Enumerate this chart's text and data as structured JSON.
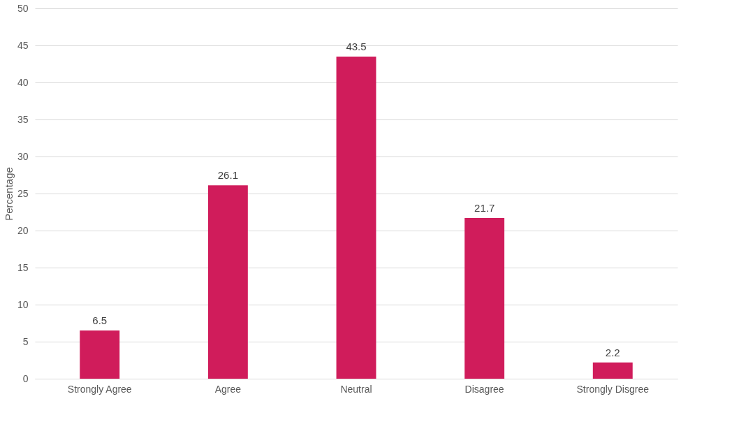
{
  "chart_data": {
    "type": "bar",
    "ylabel": "Percentage",
    "categories": [
      "Strongly Agree",
      "Agree",
      "Neutral",
      "Disagree",
      "Strongly Disgree"
    ],
    "series": [
      {
        "color": "#d01c5b",
        "values": [
          6.5,
          26.1,
          43.5,
          21.7,
          2.2
        ]
      }
    ],
    "ylim": [
      0,
      50
    ],
    "yticks": [
      0,
      5,
      10,
      15,
      20,
      25,
      30,
      35,
      40,
      45,
      50
    ],
    "grid": "y",
    "data_labels": true
  }
}
